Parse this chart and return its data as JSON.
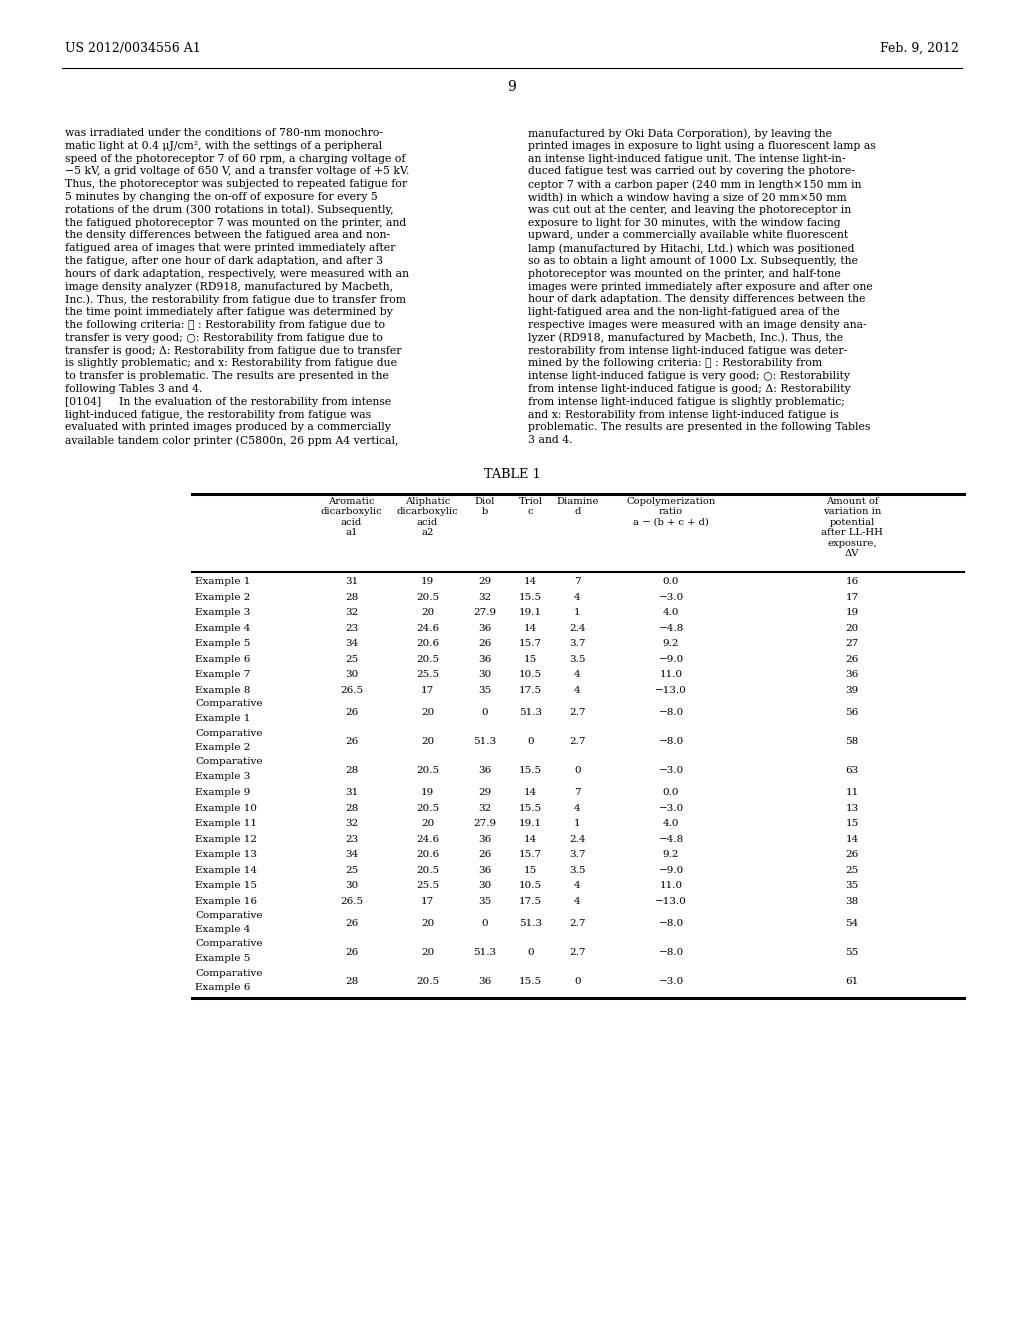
{
  "page_header_left": "US 2012/0034556 A1",
  "page_header_right": "Feb. 9, 2012",
  "page_number": "9",
  "left_column_text": [
    "was irradiated under the conditions of 780-nm monochro-",
    "matic light at 0.4 μJ/cm², with the settings of a peripheral",
    "speed of the photoreceptor 7 of 60 rpm, a charging voltage of",
    "−5 kV, a grid voltage of 650 V, and a transfer voltage of +5 kV.",
    "Thus, the photoreceptor was subjected to repeated fatigue for",
    "5 minutes by changing the on-off of exposure for every 5",
    "rotations of the drum (300 rotations in total). Subsequently,",
    "the fatigued photoreceptor 7 was mounted on the printer, and",
    "the density differences between the fatigued area and non-",
    "fatigued area of images that were printed immediately after",
    "the fatigue, after one hour of dark adaptation, and after 3",
    "hours of dark adaptation, respectively, were measured with an",
    "image density analyzer (RD918, manufactured by Macbeth,",
    "Inc.). Thus, the restorability from fatigue due to transfer from",
    "the time point immediately after fatigue was determined by",
    "the following criteria: ⓘ : Restorability from fatigue due to",
    "transfer is very good; ○: Restorability from fatigue due to",
    "transfer is good; Δ: Restorability from fatigue due to transfer",
    "is slightly problematic; and x: Restorability from fatigue due",
    "to transfer is problematic. The results are presented in the",
    "following Tables 3 and 4.",
    "[0104]   In the evaluation of the restorability from intense",
    "light-induced fatigue, the restorability from fatigue was",
    "evaluated with printed images produced by a commercially",
    "available tandem color printer (C5800n, 26 ppm A4 vertical,"
  ],
  "right_column_text": [
    "manufactured by Oki Data Corporation), by leaving the",
    "printed images in exposure to light using a fluorescent lamp as",
    "an intense light-induced fatigue unit. The intense light-in-",
    "duced fatigue test was carried out by covering the photore-",
    "ceptor 7 with a carbon paper (240 mm in length×150 mm in",
    "width) in which a window having a size of 20 mm×50 mm",
    "was cut out at the center, and leaving the photoreceptor in",
    "exposure to light for 30 minutes, with the window facing",
    "upward, under a commercially available white fluorescent",
    "lamp (manufactured by Hitachi, Ltd.) which was positioned",
    "so as to obtain a light amount of 1000 Lx. Subsequently, the",
    "photoreceptor was mounted on the printer, and half-tone",
    "images were printed immediately after exposure and after one",
    "hour of dark adaptation. The density differences between the",
    "light-fatigued area and the non-light-fatigued area of the",
    "respective images were measured with an image density ana-",
    "lyzer (RD918, manufactured by Macbeth, Inc.). Thus, the",
    "restorability from intense light-induced fatigue was deter-",
    "mined by the following criteria: ⓘ : Restorability from",
    "intense light-induced fatigue is very good; ○: Restorability",
    "from intense light-induced fatigue is good; Δ: Restorability",
    "from intense light-induced fatigue is slightly problematic;",
    "and x: Restorability from intense light-induced fatigue is",
    "problematic. The results are presented in the following Tables",
    "3 and 4."
  ],
  "table_title": "TABLE 1",
  "rows": [
    [
      "Example 1",
      "31",
      "19",
      "29",
      "14",
      "7",
      "0.0",
      "16"
    ],
    [
      "Example 2",
      "28",
      "20.5",
      "32",
      "15.5",
      "4",
      "−3.0",
      "17"
    ],
    [
      "Example 3",
      "32",
      "20",
      "27.9",
      "19.1",
      "1",
      "4.0",
      "19"
    ],
    [
      "Example 4",
      "23",
      "24.6",
      "36",
      "14",
      "2.4",
      "−4.8",
      "20"
    ],
    [
      "Example 5",
      "34",
      "20.6",
      "26",
      "15.7",
      "3.7",
      "9.2",
      "27"
    ],
    [
      "Example 6",
      "25",
      "20.5",
      "36",
      "15",
      "3.5",
      "−9.0",
      "26"
    ],
    [
      "Example 7",
      "30",
      "25.5",
      "30",
      "10.5",
      "4",
      "11.0",
      "36"
    ],
    [
      "Example 8",
      "26.5",
      "17",
      "35",
      "17.5",
      "4",
      "−13.0",
      "39"
    ],
    [
      "Comparative\nExample 1",
      "26",
      "20",
      "0",
      "51.3",
      "2.7",
      "−8.0",
      "56"
    ],
    [
      "Comparative\nExample 2",
      "26",
      "20",
      "51.3",
      "0",
      "2.7",
      "−8.0",
      "58"
    ],
    [
      "Comparative\nExample 3",
      "28",
      "20.5",
      "36",
      "15.5",
      "0",
      "−3.0",
      "63"
    ],
    [
      "Example 9",
      "31",
      "19",
      "29",
      "14",
      "7",
      "0.0",
      "11"
    ],
    [
      "Example 10",
      "28",
      "20.5",
      "32",
      "15.5",
      "4",
      "−3.0",
      "13"
    ],
    [
      "Example 11",
      "32",
      "20",
      "27.9",
      "19.1",
      "1",
      "4.0",
      "15"
    ],
    [
      "Example 12",
      "23",
      "24.6",
      "36",
      "14",
      "2.4",
      "−4.8",
      "14"
    ],
    [
      "Example 13",
      "34",
      "20.6",
      "26",
      "15.7",
      "3.7",
      "9.2",
      "26"
    ],
    [
      "Example 14",
      "25",
      "20.5",
      "36",
      "15",
      "3.5",
      "−9.0",
      "25"
    ],
    [
      "Example 15",
      "30",
      "25.5",
      "30",
      "10.5",
      "4",
      "11.0",
      "35"
    ],
    [
      "Example 16",
      "26.5",
      "17",
      "35",
      "17.5",
      "4",
      "−13.0",
      "38"
    ],
    [
      "Comparative\nExample 4",
      "26",
      "20",
      "0",
      "51.3",
      "2.7",
      "−8.0",
      "54"
    ],
    [
      "Comparative\nExample 5",
      "26",
      "20",
      "51.3",
      "0",
      "2.7",
      "−8.0",
      "55"
    ],
    [
      "Comparative\nExample 6",
      "28",
      "20.5",
      "36",
      "15.5",
      "0",
      "−3.0",
      "61"
    ]
  ]
}
